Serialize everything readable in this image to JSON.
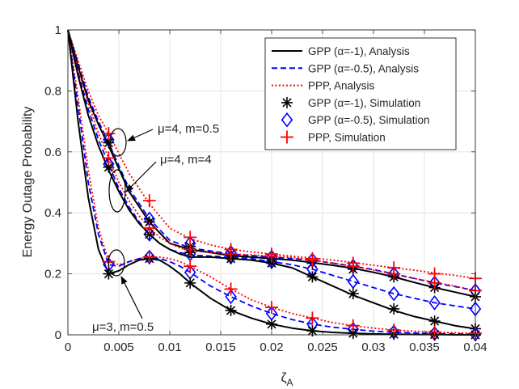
{
  "chart_data": {
    "type": "line",
    "xlabel": "ζA",
    "ylabel": "Energy Outage Probability",
    "xlim": [
      0,
      0.04
    ],
    "ylim": [
      0,
      1
    ],
    "grid": true,
    "legend_position": "top-right",
    "x_ticks": [
      "0",
      "0.005",
      "0.01",
      "0.015",
      "0.02",
      "0.025",
      "0.03",
      "0.035",
      "0.04"
    ],
    "y_ticks": [
      "0",
      "0.2",
      "0.4",
      "0.6",
      "0.8",
      "1"
    ],
    "legend": [
      {
        "label": "GPP (α=-1), Analysis",
        "style": "line",
        "color": "#000000",
        "dash": "solid"
      },
      {
        "label": "GPP (α=-0.5), Analysis",
        "style": "line",
        "color": "#0000ff",
        "dash": "dashed"
      },
      {
        "label": "PPP, Analysis",
        "style": "line",
        "color": "#ff0000",
        "dash": "dotted"
      },
      {
        "label": "GPP (α=-1), Simulation",
        "style": "marker",
        "color": "#000000",
        "marker": "asterisk"
      },
      {
        "label": "GPP (α=-0.5), Simulation",
        "style": "marker",
        "color": "#0000ff",
        "marker": "diamond"
      },
      {
        "label": "PPP, Simulation",
        "style": "marker",
        "color": "#ff0000",
        "marker": "plus"
      }
    ],
    "annotations": [
      {
        "label": "μ=4, m=0.5"
      },
      {
        "label": "μ=4, m=4"
      },
      {
        "label": "μ=3, m=0.5"
      }
    ],
    "groups": [
      {
        "annotation": "μ=4, m=0.5",
        "analysis": {
          "x": [
            0,
            0.001,
            0.002,
            0.003,
            0.004,
            0.006,
            0.008,
            0.01,
            0.012,
            0.014,
            0.016,
            0.018,
            0.02,
            0.022,
            0.024,
            0.026,
            0.028,
            0.03,
            0.032,
            0.034,
            0.036,
            0.038,
            0.04
          ],
          "gpp_a1": [
            1,
            0.88,
            0.77,
            0.69,
            0.62,
            0.47,
            0.37,
            0.3,
            0.28,
            0.27,
            0.26,
            0.255,
            0.25,
            0.245,
            0.237,
            0.228,
            0.218,
            0.205,
            0.19,
            0.172,
            0.155,
            0.14,
            0.125
          ],
          "gpp_a05": [
            1,
            0.89,
            0.78,
            0.7,
            0.63,
            0.48,
            0.38,
            0.31,
            0.285,
            0.275,
            0.265,
            0.26,
            0.255,
            0.25,
            0.245,
            0.235,
            0.225,
            0.214,
            0.2,
            0.185,
            0.17,
            0.158,
            0.145
          ],
          "ppp": [
            1,
            0.9,
            0.8,
            0.72,
            0.66,
            0.53,
            0.43,
            0.35,
            0.315,
            0.295,
            0.28,
            0.272,
            0.265,
            0.258,
            0.252,
            0.245,
            0.237,
            0.228,
            0.22,
            0.212,
            0.203,
            0.195,
            0.185
          ]
        },
        "simulation": {
          "x": [
            0.004,
            0.008,
            0.012,
            0.016,
            0.02,
            0.024,
            0.028,
            0.032,
            0.036,
            0.04
          ],
          "gpp_a1": [
            0.63,
            0.37,
            0.29,
            0.265,
            0.25,
            0.235,
            0.215,
            0.19,
            0.155,
            0.125
          ],
          "gpp_a05": [
            0.64,
            0.38,
            0.3,
            0.27,
            0.255,
            0.245,
            0.225,
            0.2,
            0.17,
            0.145
          ],
          "ppp": [
            0.66,
            0.44,
            0.32,
            0.28,
            0.265,
            0.25,
            0.235,
            0.22,
            0.2,
            0.185
          ]
        }
      },
      {
        "annotation": "μ=4, m=4",
        "analysis": {
          "x": [
            0,
            0.001,
            0.002,
            0.003,
            0.004,
            0.005,
            0.006,
            0.007,
            0.008,
            0.009,
            0.01,
            0.011,
            0.012,
            0.014,
            0.016,
            0.018,
            0.02,
            0.022,
            0.024,
            0.026,
            0.028,
            0.03,
            0.032,
            0.034,
            0.036,
            0.038,
            0.04
          ],
          "gpp_a1": [
            1,
            0.85,
            0.72,
            0.62,
            0.54,
            0.47,
            0.41,
            0.365,
            0.33,
            0.3,
            0.28,
            0.265,
            0.255,
            0.255,
            0.25,
            0.245,
            0.235,
            0.22,
            0.19,
            0.16,
            0.13,
            0.105,
            0.08,
            0.06,
            0.045,
            0.03,
            0.02
          ],
          "gpp_a05": [
            1,
            0.86,
            0.74,
            0.64,
            0.56,
            0.48,
            0.42,
            0.37,
            0.33,
            0.3,
            0.28,
            0.27,
            0.262,
            0.258,
            0.255,
            0.25,
            0.24,
            0.23,
            0.215,
            0.195,
            0.175,
            0.155,
            0.135,
            0.12,
            0.105,
            0.095,
            0.085
          ],
          "ppp": [
            1,
            0.87,
            0.76,
            0.66,
            0.58,
            0.5,
            0.44,
            0.39,
            0.35,
            0.32,
            0.3,
            0.285,
            0.275,
            0.27,
            0.265,
            0.262,
            0.258,
            0.254,
            0.245,
            0.235,
            0.225,
            0.212,
            0.2,
            0.185,
            0.172,
            0.16,
            0.145
          ]
        },
        "simulation": {
          "x": [
            0.004,
            0.008,
            0.012,
            0.016,
            0.02,
            0.024,
            0.028,
            0.032,
            0.036,
            0.04
          ],
          "gpp_a1": [
            0.55,
            0.33,
            0.27,
            0.25,
            0.235,
            0.19,
            0.135,
            0.085,
            0.045,
            0.02
          ],
          "gpp_a05": [
            0.56,
            0.33,
            0.265,
            0.255,
            0.24,
            0.215,
            0.175,
            0.135,
            0.105,
            0.085
          ],
          "ppp": [
            0.58,
            0.35,
            0.28,
            0.265,
            0.258,
            0.245,
            0.225,
            0.2,
            0.17,
            0.145
          ]
        }
      },
      {
        "annotation": "μ=3, m=0.5",
        "analysis": {
          "x": [
            0,
            0.001,
            0.002,
            0.003,
            0.004,
            0.005,
            0.006,
            0.007,
            0.008,
            0.009,
            0.01,
            0.011,
            0.012,
            0.014,
            0.016,
            0.018,
            0.02,
            0.022,
            0.024,
            0.026,
            0.028,
            0.03,
            0.032,
            0.034,
            0.036,
            0.038,
            0.04
          ],
          "gpp_a1": [
            1,
            0.7,
            0.45,
            0.28,
            0.2,
            0.21,
            0.23,
            0.245,
            0.25,
            0.245,
            0.225,
            0.2,
            0.17,
            0.12,
            0.08,
            0.055,
            0.035,
            0.022,
            0.013,
            0.008,
            0.005,
            0.003,
            0.002,
            0.001,
            0.001,
            0,
            0
          ],
          "gpp_a05": [
            1,
            0.75,
            0.5,
            0.33,
            0.23,
            0.225,
            0.24,
            0.25,
            0.255,
            0.25,
            0.24,
            0.225,
            0.205,
            0.16,
            0.125,
            0.095,
            0.07,
            0.05,
            0.035,
            0.025,
            0.018,
            0.012,
            0.009,
            0.006,
            0.004,
            0.003,
            0.002
          ],
          "ppp": [
            1,
            0.78,
            0.54,
            0.35,
            0.24,
            0.23,
            0.24,
            0.25,
            0.255,
            0.255,
            0.25,
            0.24,
            0.225,
            0.19,
            0.15,
            0.115,
            0.09,
            0.07,
            0.055,
            0.04,
            0.03,
            0.022,
            0.016,
            0.012,
            0.009,
            0.007,
            0.005
          ]
        },
        "simulation": {
          "x": [
            0.004,
            0.008,
            0.012,
            0.016,
            0.02,
            0.024,
            0.028,
            0.032,
            0.036,
            0.04
          ],
          "gpp_a1": [
            0.2,
            0.25,
            0.17,
            0.08,
            0.035,
            0.013,
            0.005,
            0.002,
            0.001,
            0
          ],
          "gpp_a05": [
            0.23,
            0.255,
            0.205,
            0.125,
            0.07,
            0.035,
            0.018,
            0.009,
            0.004,
            0.002
          ],
          "ppp": [
            0.24,
            0.255,
            0.225,
            0.15,
            0.09,
            0.055,
            0.03,
            0.016,
            0.009,
            0.005
          ]
        }
      }
    ]
  }
}
